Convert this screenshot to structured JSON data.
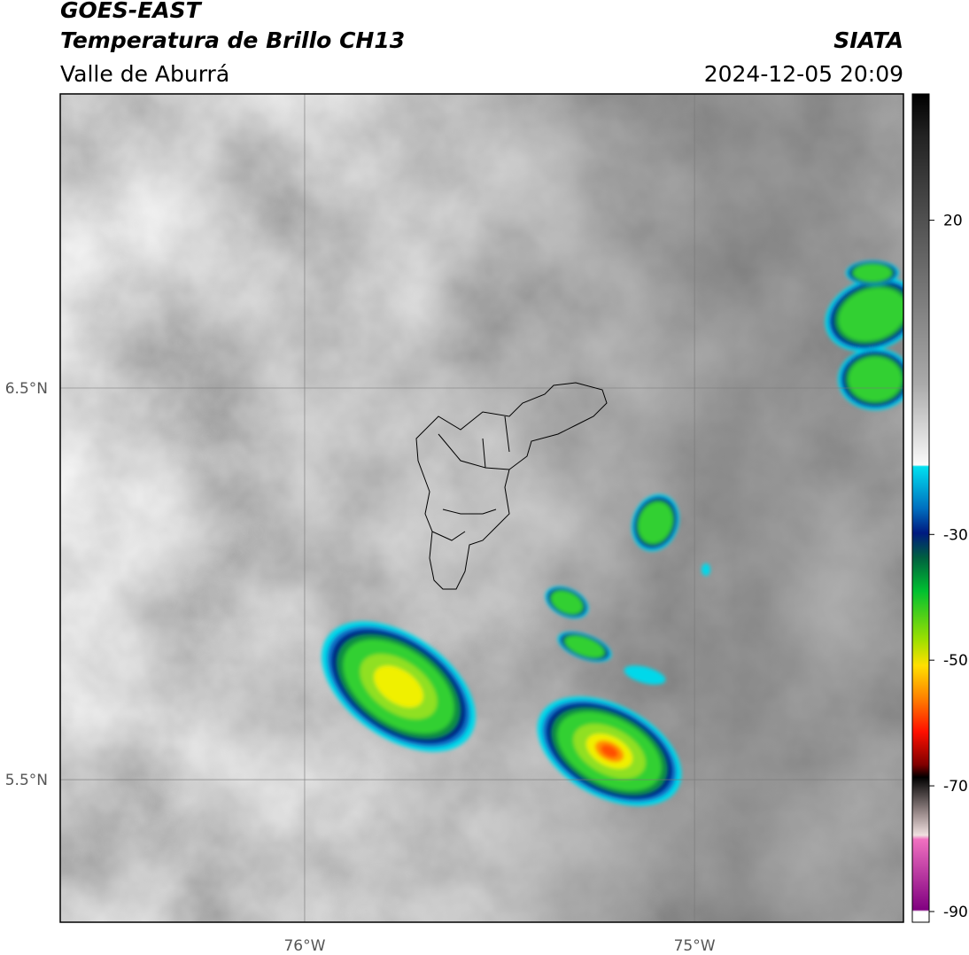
{
  "header": {
    "title": "GOES-EAST",
    "subtitle": "Temperatura de Brillo CH13",
    "region": "Valle de Aburrá",
    "source": "SIATA",
    "datetime": "2024-12-05 20:09"
  },
  "map": {
    "xlim": [
      -76.627,
      -74.464
    ],
    "ylim": [
      5.136,
      7.251
    ],
    "xticks": [
      {
        "value": -76,
        "label": "76°W"
      },
      {
        "value": -75,
        "label": "75°W"
      }
    ],
    "yticks": [
      {
        "value": 6.5,
        "label": "6.5°N"
      },
      {
        "value": 5.5,
        "label": "5.5°N"
      }
    ],
    "grid": true
  },
  "colorbar": {
    "lim": [
      -91.7,
      40.1
    ],
    "ticks": [
      20,
      -30,
      -50,
      -70,
      -90
    ]
  }
}
